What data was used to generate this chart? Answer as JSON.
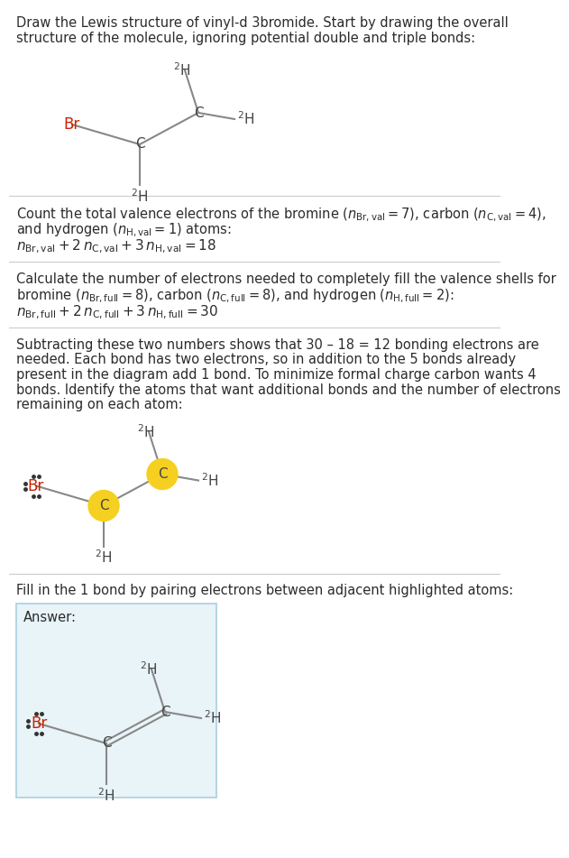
{
  "bg_color": "#ffffff",
  "text_color": "#2b2b2b",
  "br_color": "#cc2200",
  "bond_color": "#888888",
  "highlight_color": "#f5d020",
  "answer_box_color": "#e8f4f8",
  "answer_box_border": "#aacfe0",
  "title_lines": [
    "Draw the Lewis structure of vinyl-d 3bromide. Start by drawing the overall",
    "structure of the molecule, ignoring potential double and triple bonds:"
  ],
  "s1_lines": [
    "Count the total valence electrons of the bromine (⁠$n_{\\mathrm{Br,val}} = 7$⁠), carbon (⁠$n_{\\mathrm{C,val}} = 4$⁠),",
    "and hydrogen (⁠$n_{\\mathrm{H,val}} = 1$⁠) atoms:"
  ],
  "s1_eq": "$n_{\\mathrm{Br,val}} + 2\\,n_{\\mathrm{C,val}} + 3\\,n_{\\mathrm{H,val}} = 18$",
  "s2_lines": [
    "Calculate the number of electrons needed to completely fill the valence shells for",
    "bromine (⁠$n_{\\mathrm{Br,full}} = 8$⁠), carbon (⁠$n_{\\mathrm{C,full}} = 8$⁠), and hydrogen (⁠$n_{\\mathrm{H,full}} = 2$⁠):"
  ],
  "s2_eq": "$n_{\\mathrm{Br,full}} + 2\\,n_{\\mathrm{C,full}} + 3\\,n_{\\mathrm{H,full}} = 30$",
  "s3_lines": [
    "Subtracting these two numbers shows that 30 – 18 = 12 bonding electrons are",
    "needed. Each bond has two electrons, so in addition to the 5 bonds already",
    "present in the diagram add 1 bond. To minimize formal charge carbon wants 4",
    "bonds. Identify the atoms that want additional bonds and the number of electrons",
    "remaining on each atom:"
  ],
  "s4_line": "Fill in the 1 bond by pairing electrons between adjacent highlighted atoms:",
  "answer_label": "Answer:"
}
